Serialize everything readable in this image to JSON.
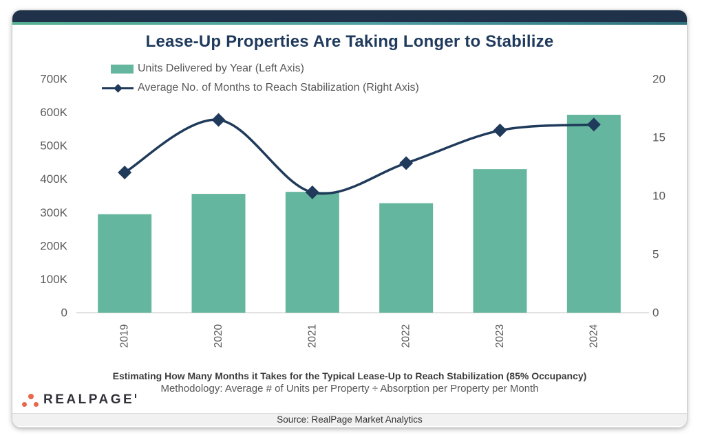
{
  "header": {
    "title": "Lease-Up Properties Are Taking Longer to Stabilize"
  },
  "legend": {
    "bar_label": "Units Delivered by Year (Left Axis)",
    "line_label": "Average No. of Months to Reach Stabilization (Right Axis)"
  },
  "chart_data": {
    "type": "combo",
    "categories": [
      "2019",
      "2020",
      "2021",
      "2022",
      "2023",
      "2024"
    ],
    "series": [
      {
        "name": "Units Delivered by Year (Left Axis)",
        "type": "bar",
        "axis": "left",
        "color": "#65B69E",
        "values": [
          295000,
          356000,
          362000,
          328000,
          430000,
          593000
        ]
      },
      {
        "name": "Average No. of Months to Reach Stabilization (Right Axis)",
        "type": "line",
        "axis": "right",
        "color": "#1F3A5A",
        "marker": "diamond",
        "values": [
          12.0,
          16.5,
          10.3,
          12.8,
          15.6,
          16.1
        ]
      }
    ],
    "left_axis": {
      "min": 0,
      "max": 700000,
      "ticks": [
        {
          "label": "0",
          "value": 0
        },
        {
          "label": "100K",
          "value": 100000
        },
        {
          "label": "200K",
          "value": 200000
        },
        {
          "label": "300K",
          "value": 300000
        },
        {
          "label": "400K",
          "value": 400000
        },
        {
          "label": "500K",
          "value": 500000
        },
        {
          "label": "600K",
          "value": 600000
        },
        {
          "label": "700K",
          "value": 700000
        }
      ]
    },
    "right_axis": {
      "min": 0,
      "max": 20,
      "ticks": [
        {
          "label": "0",
          "value": 0
        },
        {
          "label": "5",
          "value": 5
        },
        {
          "label": "10",
          "value": 10
        },
        {
          "label": "15",
          "value": 15
        },
        {
          "label": "20",
          "value": 20
        }
      ]
    },
    "title": "Lease-Up Properties Are Taking Longer to Stabilize",
    "grid": false,
    "legend_position": "top-left",
    "x_label_rotation": -90
  },
  "footer": {
    "caption_bold": "Estimating How Many Months it Takes for the Typical Lease-Up to Reach Stabilization (85% Occupancy)",
    "caption_methodology": "Methodology: Average # of Units per Property ÷ Absorption per Property per Month",
    "source": "Source: RealPage Market Analytics"
  },
  "logo": {
    "text": "REALPAGE"
  },
  "colors": {
    "header_bar": "#1F3249",
    "accent_gradient": [
      "#57B093",
      "#4E9DA3",
      "#2E6F7B"
    ],
    "title_text": "#1F3A5C",
    "bar_fill": "#65B69E",
    "line_stroke": "#1F3A5A",
    "axis_text": "#595959",
    "logo_orange": "#E8684B",
    "source_strip_bg": "#F1F1F2"
  }
}
